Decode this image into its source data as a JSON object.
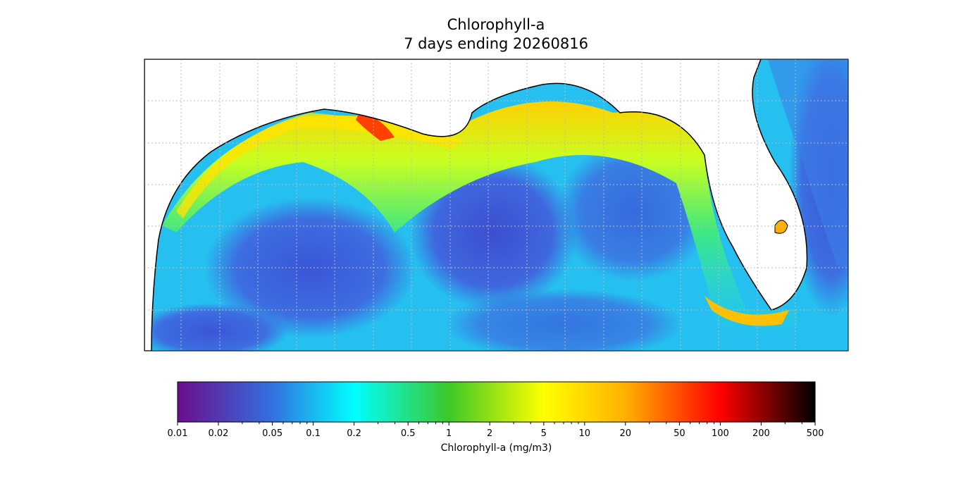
{
  "map": {
    "title": "Chlorophyll-a",
    "subtitle": "7 days ending 20260816",
    "colorbar": {
      "label": "Chlorophyll-a (mg/m3)",
      "scale": "log",
      "lim": [
        0.01,
        500
      ],
      "ticks": [
        0.01,
        0.02,
        0.05,
        0.1,
        0.2,
        0.5,
        1,
        2,
        5,
        10,
        20,
        50,
        100,
        200,
        500
      ],
      "minor_ticks": [
        0.03,
        0.04,
        0.06,
        0.07,
        0.08,
        0.09,
        0.3,
        0.4,
        0.6,
        0.7,
        0.8,
        0.9,
        3,
        4,
        6,
        7,
        8,
        9,
        30,
        40,
        60,
        70,
        80,
        90,
        300,
        400
      ],
      "colormap": [
        {
          "value": 0.01,
          "color": "#6b0d8c"
        },
        {
          "value": 0.05,
          "color": "#3270e0"
        },
        {
          "value": 0.2,
          "color": "#00ffff"
        },
        {
          "value": 1,
          "color": "#3cc828"
        },
        {
          "value": 5,
          "color": "#ffff00"
        },
        {
          "value": 20,
          "color": "#ffb000"
        },
        {
          "value": 100,
          "color": "#ff0000"
        },
        {
          "value": 500,
          "color": "#000000"
        }
      ]
    }
  }
}
